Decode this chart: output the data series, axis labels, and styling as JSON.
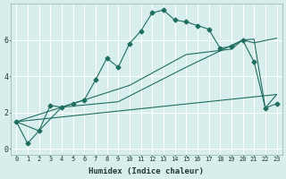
{
  "xlabel": "Humidex (Indice chaleur)",
  "xlim": [
    -0.5,
    23.5
  ],
  "ylim": [
    -0.3,
    8.0
  ],
  "yticks": [
    0,
    2,
    4,
    6
  ],
  "xticks": [
    0,
    1,
    2,
    3,
    4,
    5,
    6,
    7,
    8,
    9,
    10,
    11,
    12,
    13,
    14,
    15,
    16,
    17,
    18,
    19,
    20,
    21,
    22,
    23
  ],
  "bg_color": "#d8eeec",
  "line_color": "#1e6e60",
  "grid_color": "#ffffff",
  "line1_x": [
    0,
    1,
    2,
    3,
    4,
    5,
    6,
    7,
    8,
    9,
    10,
    11,
    12,
    13,
    14,
    15,
    16,
    17,
    18,
    19,
    20,
    21,
    22,
    23
  ],
  "line1_y": [
    1.5,
    0.3,
    1.0,
    2.4,
    2.3,
    2.5,
    2.7,
    3.8,
    5.0,
    4.5,
    5.8,
    6.5,
    7.5,
    7.65,
    7.1,
    7.0,
    6.8,
    6.6,
    5.55,
    5.65,
    6.0,
    4.8,
    2.25,
    2.5
  ],
  "line2_x": [
    0,
    23
  ],
  "line2_y": [
    1.5,
    3.0
  ],
  "line3_x": [
    0,
    4,
    10,
    15,
    19,
    20,
    21,
    23
  ],
  "line3_y": [
    1.5,
    2.3,
    3.5,
    5.2,
    5.5,
    6.0,
    5.85,
    6.1
  ],
  "line4_x": [
    0,
    2,
    4,
    9,
    15,
    20,
    21,
    22,
    23
  ],
  "line4_y": [
    1.5,
    1.0,
    2.3,
    2.6,
    4.5,
    6.0,
    6.05,
    2.25,
    3.0
  ]
}
